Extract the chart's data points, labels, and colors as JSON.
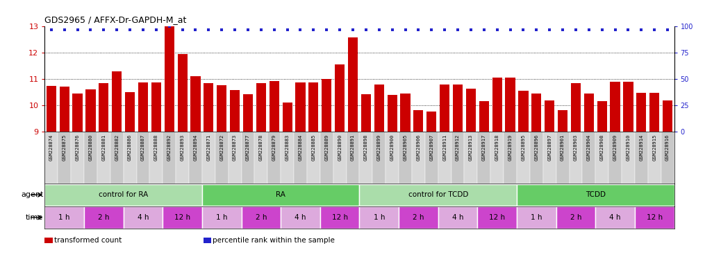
{
  "title": "GDS2965 / AFFX-Dr-GAPDH-M_at",
  "bar_color": "#cc0000",
  "percentile_color": "#2222cc",
  "ylim": [
    9,
    13
  ],
  "yticks": [
    9,
    10,
    11,
    12,
    13
  ],
  "y2lim": [
    0,
    100
  ],
  "y2ticks": [
    0,
    25,
    50,
    75,
    100
  ],
  "samples": [
    "GSM228874",
    "GSM228875",
    "GSM228876",
    "GSM228880",
    "GSM228881",
    "GSM228882",
    "GSM228886",
    "GSM228887",
    "GSM228888",
    "GSM228892",
    "GSM228893",
    "GSM228894",
    "GSM228871",
    "GSM228872",
    "GSM228873",
    "GSM228877",
    "GSM228878",
    "GSM228879",
    "GSM228883",
    "GSM228884",
    "GSM228885",
    "GSM228889",
    "GSM228890",
    "GSM228891",
    "GSM228898",
    "GSM228899",
    "GSM228900",
    "GSM228905",
    "GSM228906",
    "GSM228907",
    "GSM228911",
    "GSM228912",
    "GSM228913",
    "GSM228917",
    "GSM228918",
    "GSM228919",
    "GSM228895",
    "GSM228896",
    "GSM228897",
    "GSM228901",
    "GSM228903",
    "GSM228904",
    "GSM228908",
    "GSM228909",
    "GSM228910",
    "GSM228914",
    "GSM228915",
    "GSM228916"
  ],
  "bar_values": [
    10.75,
    10.72,
    10.45,
    10.6,
    10.85,
    11.3,
    10.5,
    10.88,
    10.88,
    13.1,
    11.95,
    11.1,
    10.85,
    10.78,
    10.58,
    10.42,
    10.85,
    10.92,
    10.1,
    10.88,
    10.88,
    11.0,
    11.55,
    12.6,
    10.42,
    10.8,
    10.4,
    10.45,
    9.82,
    9.78,
    10.8,
    10.8,
    10.65,
    10.17,
    11.07,
    11.07,
    10.55,
    10.45,
    10.2,
    9.82,
    10.85,
    10.45,
    10.15,
    10.9,
    10.9,
    10.48,
    10.48,
    10.18
  ],
  "percentile_values": [
    97,
    97,
    97,
    97,
    97,
    97,
    97,
    97,
    97,
    100,
    97,
    97,
    97,
    97,
    97,
    97,
    97,
    97,
    97,
    97,
    97,
    97,
    97,
    97,
    97,
    97,
    97,
    97,
    97,
    97,
    97,
    97,
    97,
    97,
    97,
    97,
    97,
    97,
    97,
    97,
    97,
    97,
    97,
    97,
    97,
    97,
    97,
    97
  ],
  "agents": [
    {
      "label": "control for RA",
      "start": 0,
      "end": 12,
      "color": "#aaddaa"
    },
    {
      "label": "RA",
      "start": 12,
      "end": 24,
      "color": "#66cc66"
    },
    {
      "label": "control for TCDD",
      "start": 24,
      "end": 36,
      "color": "#aaddaa"
    },
    {
      "label": "TCDD",
      "start": 36,
      "end": 48,
      "color": "#66cc66"
    }
  ],
  "time_groups": [
    {
      "label": "1 h",
      "start": 0,
      "end": 3,
      "color": "#ddaadd"
    },
    {
      "label": "2 h",
      "start": 3,
      "end": 6,
      "color": "#cc44cc"
    },
    {
      "label": "4 h",
      "start": 6,
      "end": 9,
      "color": "#ddaadd"
    },
    {
      "label": "12 h",
      "start": 9,
      "end": 12,
      "color": "#cc44cc"
    },
    {
      "label": "1 h",
      "start": 12,
      "end": 15,
      "color": "#ddaadd"
    },
    {
      "label": "2 h",
      "start": 15,
      "end": 18,
      "color": "#cc44cc"
    },
    {
      "label": "4 h",
      "start": 18,
      "end": 21,
      "color": "#ddaadd"
    },
    {
      "label": "12 h",
      "start": 21,
      "end": 24,
      "color": "#cc44cc"
    },
    {
      "label": "1 h",
      "start": 24,
      "end": 27,
      "color": "#ddaadd"
    },
    {
      "label": "2 h",
      "start": 27,
      "end": 30,
      "color": "#cc44cc"
    },
    {
      "label": "4 h",
      "start": 30,
      "end": 33,
      "color": "#ddaadd"
    },
    {
      "label": "12 h",
      "start": 33,
      "end": 36,
      "color": "#cc44cc"
    },
    {
      "label": "1 h",
      "start": 36,
      "end": 39,
      "color": "#ddaadd"
    },
    {
      "label": "2 h",
      "start": 39,
      "end": 42,
      "color": "#cc44cc"
    },
    {
      "label": "4 h",
      "start": 42,
      "end": 45,
      "color": "#ddaadd"
    },
    {
      "label": "12 h",
      "start": 45,
      "end": 48,
      "color": "#cc44cc"
    }
  ],
  "legend_items": [
    {
      "color": "#cc0000",
      "label": "transformed count"
    },
    {
      "color": "#2222cc",
      "label": "percentile rank within the sample"
    }
  ],
  "xtick_bg": "#d0d0d0",
  "bg_color": "#ffffff"
}
